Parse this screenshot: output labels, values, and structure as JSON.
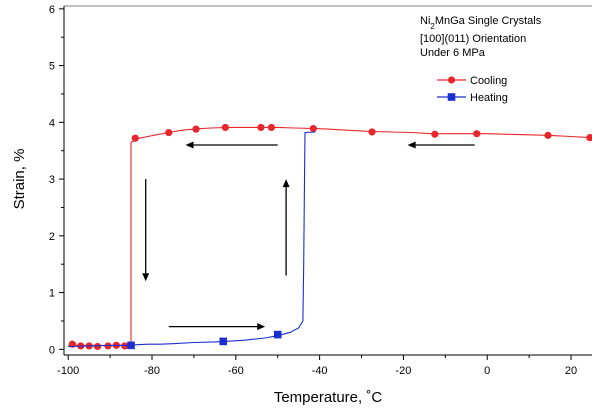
{
  "chart_data": {
    "type": "line",
    "xlabel": "Temperature, ˚C",
    "ylabel": "Strain, %",
    "xlim": [
      -101,
      25
    ],
    "ylim": [
      -0.1,
      6.05
    ],
    "x_ticks": [
      -100,
      -80,
      -60,
      -40,
      -20,
      0,
      20
    ],
    "x_tick_labels": [
      "-100",
      "-80",
      "-60",
      "-40",
      "-20",
      "0",
      "20"
    ],
    "y_ticks": [
      0,
      1,
      2,
      3,
      4,
      5,
      6
    ],
    "y_tick_labels": [
      "0",
      "1",
      "2",
      "3",
      "4",
      "5",
      "6"
    ],
    "grid": false,
    "legend_position": "top-right",
    "annotation": {
      "line1_prefix": "Ni",
      "line1_sub": "2",
      "line1_suffix": "MnGa Single Crystals",
      "line2": "[100](011) Orientation",
      "line3": "Under 6 MPa"
    },
    "series": [
      {
        "name": "Cooling",
        "color": "#e8262b",
        "marker": "circle",
        "points": [
          [
            25,
            3.73
          ],
          [
            20,
            3.75
          ],
          [
            15,
            3.77
          ],
          [
            10,
            3.78
          ],
          [
            5,
            3.79
          ],
          [
            0,
            3.8
          ],
          [
            -3,
            3.8
          ],
          [
            -8,
            3.8
          ],
          [
            -13,
            3.8
          ],
          [
            -18,
            3.82
          ],
          [
            -23,
            3.83
          ],
          [
            -28,
            3.84
          ],
          [
            -33,
            3.86
          ],
          [
            -38,
            3.88
          ],
          [
            -41,
            3.89
          ],
          [
            -46,
            3.9
          ],
          [
            -50,
            3.91
          ],
          [
            -53,
            3.91
          ],
          [
            -56,
            3.91
          ],
          [
            -62,
            3.91
          ],
          [
            -66,
            3.9
          ],
          [
            -70,
            3.88
          ],
          [
            -73,
            3.86
          ],
          [
            -76,
            3.82
          ],
          [
            -79,
            3.78
          ],
          [
            -81,
            3.75
          ],
          [
            -83,
            3.72
          ],
          [
            -84,
            3.68
          ],
          [
            -85,
            3.65
          ],
          [
            -85,
            0.1
          ],
          [
            -86,
            0.08
          ],
          [
            -88,
            0.07
          ],
          [
            -90,
            0.07
          ],
          [
            -93,
            0.07
          ],
          [
            -95,
            0.07
          ],
          [
            -97,
            0.07
          ],
          [
            -99,
            0.08
          ],
          [
            -100,
            0.07
          ]
        ],
        "markers": [
          [
            -2.5,
            3.8
          ],
          [
            -12.5,
            3.79
          ],
          [
            -27.5,
            3.83
          ],
          [
            -41.5,
            3.89
          ],
          [
            -51.5,
            3.91
          ],
          [
            -54,
            3.91
          ],
          [
            -62.5,
            3.91
          ],
          [
            -69.5,
            3.88
          ],
          [
            -76,
            3.82
          ],
          [
            -84,
            3.72
          ],
          [
            -99,
            0.09
          ],
          [
            -97,
            0.06
          ],
          [
            -95,
            0.06
          ],
          [
            -93,
            0.05
          ],
          [
            -90.5,
            0.06
          ],
          [
            -88.5,
            0.07
          ],
          [
            -86.5,
            0.06
          ],
          [
            14.5,
            3.77
          ],
          [
            24.5,
            3.73
          ]
        ]
      },
      {
        "name": "Heating",
        "color": "#1a2fd0",
        "marker": "square",
        "points": [
          [
            -100,
            0.05
          ],
          [
            -95,
            0.06
          ],
          [
            -90,
            0.07
          ],
          [
            -86,
            0.07
          ],
          [
            -84,
            0.08
          ],
          [
            -81,
            0.09
          ],
          [
            -78,
            0.09
          ],
          [
            -75,
            0.1
          ],
          [
            -70,
            0.12
          ],
          [
            -65,
            0.13
          ],
          [
            -62.5,
            0.14
          ],
          [
            -58,
            0.16
          ],
          [
            -53,
            0.2
          ],
          [
            -50,
            0.24
          ],
          [
            -47,
            0.3
          ],
          [
            -45,
            0.38
          ],
          [
            -44,
            0.5
          ],
          [
            -43.8,
            1.5
          ],
          [
            -43.6,
            3.0
          ],
          [
            -43.5,
            3.82
          ],
          [
            -41,
            3.83
          ]
        ],
        "markers": [
          [
            -85,
            0.07
          ],
          [
            -63,
            0.14
          ],
          [
            -50,
            0.26
          ]
        ]
      }
    ],
    "arrows": [
      {
        "from": [
          -3,
          3.6
        ],
        "to": [
          -19,
          3.6
        ]
      },
      {
        "from": [
          -50,
          3.6
        ],
        "to": [
          -72,
          3.6
        ]
      },
      {
        "from": [
          -81.5,
          3.0
        ],
        "to": [
          -81.5,
          1.2
        ]
      },
      {
        "from": [
          -76,
          0.4
        ],
        "to": [
          -53,
          0.4
        ]
      },
      {
        "from": [
          -48,
          1.3
        ],
        "to": [
          -48,
          3.0
        ]
      }
    ]
  }
}
